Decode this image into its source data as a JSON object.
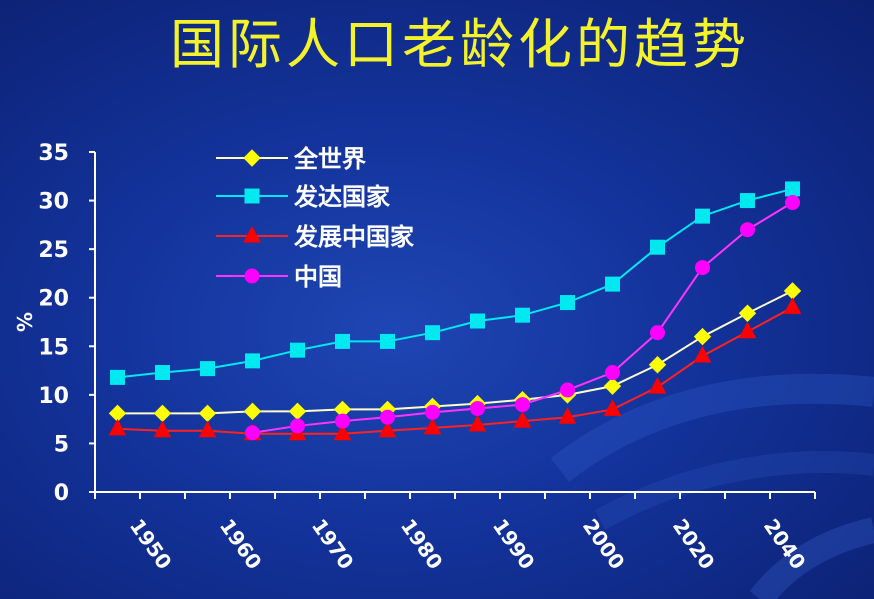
{
  "slide": {
    "title": "国际人口老龄化的趋势"
  },
  "colors": {
    "background": "#13329a",
    "title": "#f4f22a",
    "axis": "#ffffff"
  },
  "chart_data": {
    "type": "line",
    "title": "",
    "xlabel": "",
    "ylabel": "%",
    "ylim": [
      0,
      35
    ],
    "yticks": [
      0,
      5,
      10,
      15,
      20,
      25,
      30,
      35
    ],
    "x_tick_labels": [
      "1950",
      "1960",
      "1970",
      "1980",
      "1990",
      "2000",
      "2020",
      "2040"
    ],
    "grid": false,
    "legend_position": "top-left",
    "series": [
      {
        "name": "全世界",
        "color": "#ffff00",
        "line_color": "#ffffcc",
        "marker": "diamond",
        "values": [
          8.1,
          8.1,
          8.1,
          8.3,
          8.3,
          8.5,
          8.5,
          8.8,
          9.1,
          9.5,
          10.0,
          10.9,
          13.1,
          16.0,
          18.4,
          20.7
        ]
      },
      {
        "name": "发达国家",
        "color": "#00e8f0",
        "line_color": "#00e8f0",
        "marker": "square",
        "values": [
          11.8,
          12.3,
          12.7,
          13.5,
          14.6,
          15.5,
          15.5,
          16.4,
          17.6,
          18.2,
          19.5,
          21.4,
          25.2,
          28.4,
          30.0,
          31.2
        ]
      },
      {
        "name": "发展中国家",
        "color": "#ff0000",
        "line_color": "#ff2020",
        "marker": "triangle",
        "values": [
          6.5,
          6.3,
          6.3,
          6.0,
          6.0,
          6.0,
          6.3,
          6.6,
          6.9,
          7.3,
          7.7,
          8.5,
          10.8,
          14.0,
          16.5,
          19.0
        ]
      },
      {
        "name": "中国",
        "color": "#ff00ff",
        "line_color": "#ff33ff",
        "marker": "circle",
        "values": [
          null,
          null,
          null,
          6.1,
          6.8,
          7.3,
          7.7,
          8.2,
          8.6,
          9.0,
          10.5,
          12.3,
          16.4,
          23.1,
          27.0,
          29.8
        ]
      }
    ]
  }
}
